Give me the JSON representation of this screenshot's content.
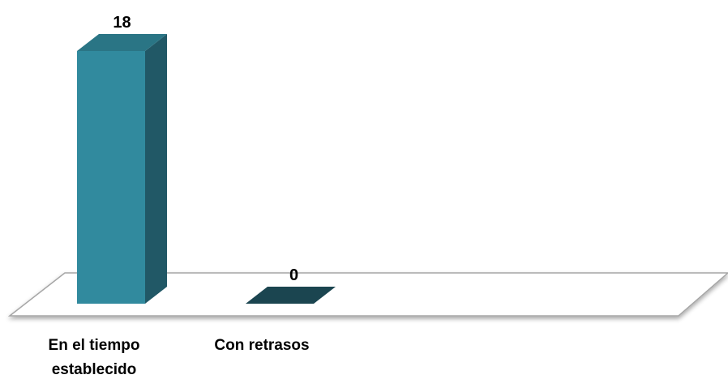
{
  "chart_data": {
    "type": "bar",
    "categories": [
      "En el tiempo establecido",
      "Con retrasos"
    ],
    "category_lines": [
      [
        "En el tiempo",
        "establecido"
      ],
      [
        "Con retrasos"
      ]
    ],
    "values": [
      18,
      0
    ],
    "data_labels": [
      "18",
      "0"
    ],
    "title": "",
    "xlabel": "",
    "ylabel": "",
    "ylim": [
      0,
      18
    ],
    "grid": false,
    "legend": "none",
    "three_d": true
  },
  "colors": {
    "bar_front": "#318A9E",
    "bar_side": "#215866",
    "bar_top": "#2A7585",
    "zero_bar": "#1B4550",
    "floor_stroke": "#a6a6a6",
    "background": "#ffffff"
  }
}
